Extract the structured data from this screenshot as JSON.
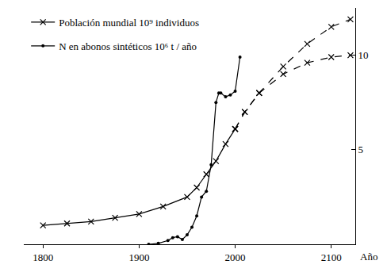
{
  "chart_data": {
    "type": "line",
    "x_label": "Año",
    "xlim": [
      1780,
      2125
    ],
    "xticks": [
      1800,
      1900,
      2000,
      2100
    ],
    "ylim": [
      0,
      12.5
    ],
    "yticks": [
      5,
      10
    ],
    "grid": false,
    "legend": "upper left",
    "series": [
      {
        "name": "Población mundial 10⁹ individuos",
        "color": "#000000",
        "marker": "x",
        "line_style": "solid",
        "x": [
          1800,
          1825,
          1850,
          1875,
          1900,
          1925,
          1950,
          1960,
          1970,
          1980,
          1990,
          2000
        ],
        "values": [
          1.0,
          1.1,
          1.2,
          1.4,
          1.6,
          2.0,
          2.5,
          3.0,
          3.7,
          4.4,
          5.3,
          6.1
        ]
      },
      {
        "name": "Población mundial 10⁹ individuos",
        "color": "#000000",
        "marker": "x",
        "line_style": "dashed",
        "x": [
          2000,
          2010,
          2025,
          2050,
          2075,
          2100,
          2120
        ],
        "values": [
          6.1,
          7.0,
          8.0,
          9.4,
          10.6,
          11.5,
          11.9
        ]
      },
      {
        "name": "Población mundial 10⁹ individuos",
        "color": "#000000",
        "marker": "x",
        "line_style": "dashed",
        "x": [
          2000,
          2010,
          2025,
          2050,
          2075,
          2100,
          2120
        ],
        "values": [
          6.1,
          7.0,
          8.0,
          9.0,
          9.6,
          9.9,
          10.0
        ]
      },
      {
        "name": "N en abonos sintéticos 10⁶ t / año",
        "color": "#000000",
        "marker": "circle",
        "line_style": "solid",
        "x": [
          1910,
          1920,
          1930,
          1935,
          1940,
          1945,
          1950,
          1955,
          1960,
          1965,
          1970,
          1975,
          1980,
          1983,
          1985,
          1990,
          1995,
          2000,
          2005
        ],
        "values": [
          0,
          0.05,
          0.2,
          0.35,
          0.4,
          0.25,
          0.5,
          0.9,
          1.5,
          2.5,
          2.8,
          4.2,
          7.5,
          8.0,
          8.0,
          7.8,
          7.9,
          8.1,
          9.9
        ]
      }
    ]
  }
}
